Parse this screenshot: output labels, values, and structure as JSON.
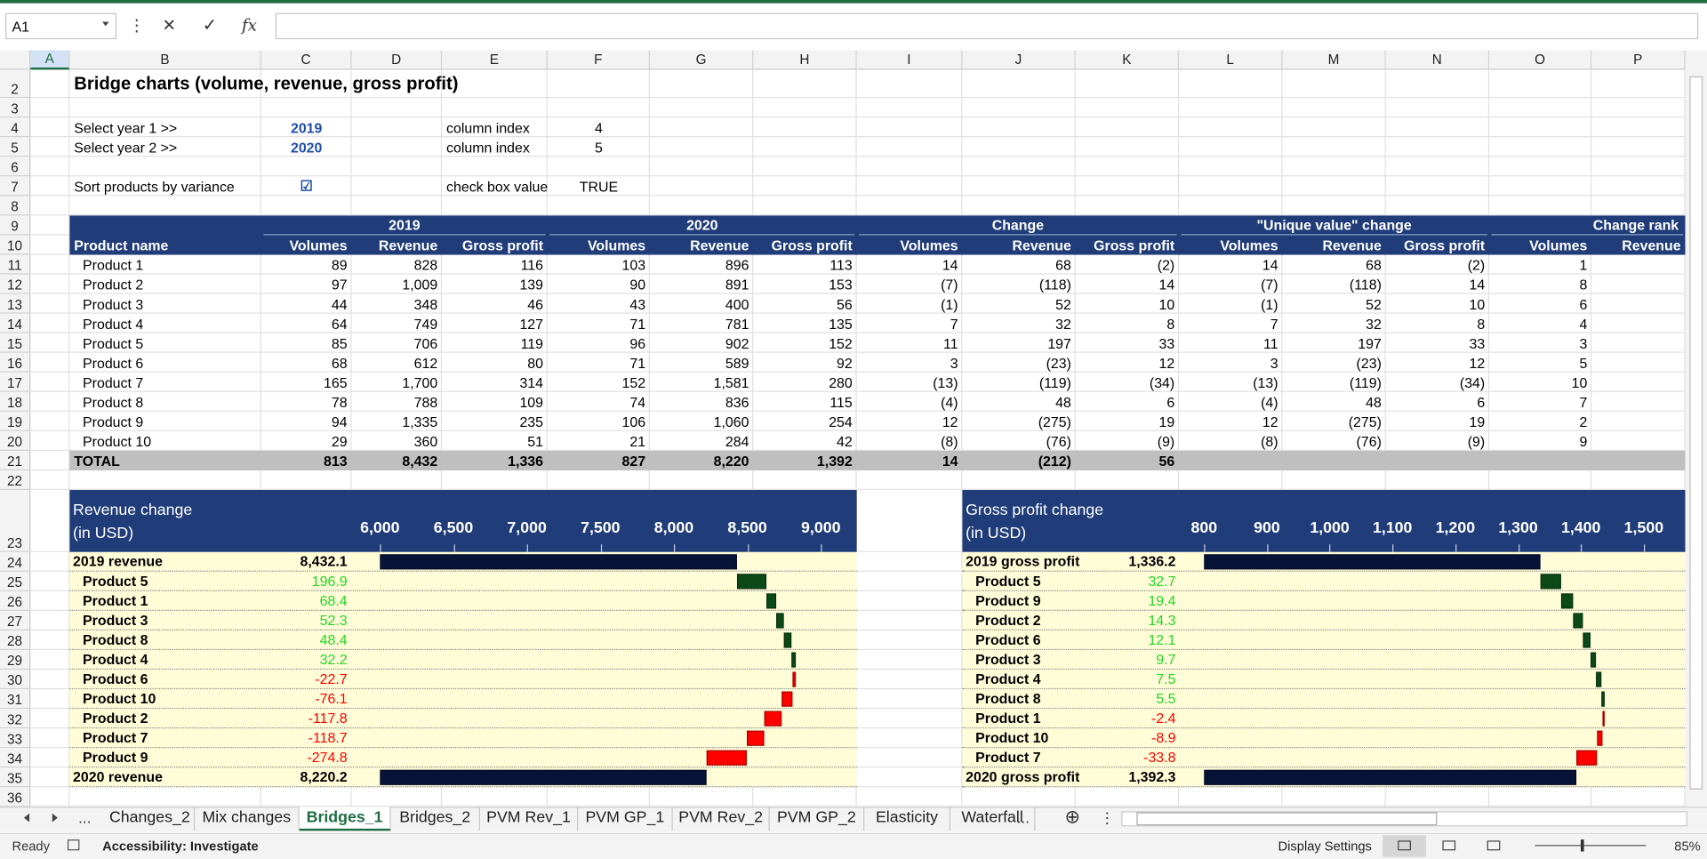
{
  "ui": {
    "name_box": "A1",
    "menu_dots": "⋮",
    "cancel": "✕",
    "enter": "✓",
    "function": "fx",
    "columns": [
      "A",
      "B",
      "C",
      "D",
      "E",
      "F",
      "G",
      "H",
      "I",
      "J",
      "K",
      "L",
      "M",
      "N",
      "O",
      "P"
    ],
    "rows": [
      2,
      3,
      4,
      5,
      6,
      7,
      8,
      9,
      10,
      11,
      12,
      13,
      14,
      15,
      16,
      17,
      18,
      19,
      20,
      21,
      22,
      23,
      24,
      25,
      26,
      27,
      28,
      29,
      30,
      31,
      32,
      33,
      34,
      35,
      36
    ],
    "tabs": [
      "Changes_2",
      "Mix changes",
      "Bridges_1",
      "Bridges_2",
      "PVM Rev_1",
      "PVM GP_1",
      "PVM Rev_2",
      "PVM GP_2",
      "Elasticity",
      "Waterfall"
    ],
    "active_tab": "Bridges_1",
    "more": "...",
    "add_sheet": "⊕",
    "status": {
      "ready": "Ready",
      "accessibility": "Accessibility: Investigate",
      "display": "Display Settings",
      "zoom": "85%"
    }
  },
  "sheet": {
    "title": "Bridge charts (volume, revenue, gross profit)",
    "inputs": [
      {
        "row": 4,
        "label": "Select year 1 >>",
        "year": "2019",
        "index_label": "column index",
        "index": "4"
      },
      {
        "row": 5,
        "label": "Select year 2 >>",
        "year": "2020",
        "index_label": "column index",
        "index": "5"
      },
      {
        "row": 7,
        "label": "Sort products by variance",
        "year": "☑",
        "index_label": "check box value",
        "index": "TRUE"
      }
    ],
    "table": {
      "groups": [
        "2019",
        "2020",
        "Change",
        "\"Unique value\" change",
        "Change rank"
      ],
      "columns": [
        "Product name",
        "Volumes",
        "Revenue",
        "Gross profit",
        "Volumes",
        "Revenue",
        "Gross profit",
        "Volumes",
        "Revenue",
        "Gross profit",
        "Volumes",
        "Revenue",
        "Gross profit",
        "Volumes",
        "Revenue"
      ],
      "rows": [
        [
          "Product 1",
          "89",
          "828",
          "116",
          "103",
          "896",
          "113",
          "14",
          "68",
          "(2)",
          "14",
          "68",
          "(2)",
          "1"
        ],
        [
          "Product 2",
          "97",
          "1,009",
          "139",
          "90",
          "891",
          "153",
          "(7)",
          "(118)",
          "14",
          "(7)",
          "(118)",
          "14",
          "8"
        ],
        [
          "Product 3",
          "44",
          "348",
          "46",
          "43",
          "400",
          "56",
          "(1)",
          "52",
          "10",
          "(1)",
          "52",
          "10",
          "6"
        ],
        [
          "Product 4",
          "64",
          "749",
          "127",
          "71",
          "781",
          "135",
          "7",
          "32",
          "8",
          "7",
          "32",
          "8",
          "4"
        ],
        [
          "Product 5",
          "85",
          "706",
          "119",
          "96",
          "902",
          "152",
          "11",
          "197",
          "33",
          "11",
          "197",
          "33",
          "3"
        ],
        [
          "Product 6",
          "68",
          "612",
          "80",
          "71",
          "589",
          "92",
          "3",
          "(23)",
          "12",
          "3",
          "(23)",
          "12",
          "5"
        ],
        [
          "Product 7",
          "165",
          "1,700",
          "314",
          "152",
          "1,581",
          "280",
          "(13)",
          "(119)",
          "(34)",
          "(13)",
          "(119)",
          "(34)",
          "10"
        ],
        [
          "Product 8",
          "78",
          "788",
          "109",
          "74",
          "836",
          "115",
          "(4)",
          "48",
          "6",
          "(4)",
          "48",
          "6",
          "7"
        ],
        [
          "Product 9",
          "94",
          "1,335",
          "235",
          "106",
          "1,060",
          "254",
          "12",
          "(275)",
          "19",
          "12",
          "(275)",
          "19",
          "2"
        ],
        [
          "Product 10",
          "29",
          "360",
          "51",
          "21",
          "284",
          "42",
          "(8)",
          "(76)",
          "(9)",
          "(8)",
          "(76)",
          "(9)",
          "9"
        ]
      ],
      "total": [
        "TOTAL",
        "813",
        "8,432",
        "1,336",
        "827",
        "8,220",
        "1,392",
        "14",
        "(212)",
        "56"
      ]
    }
  },
  "chart_data": [
    {
      "type": "waterfall",
      "title": "Revenue change",
      "subtitle": "(in USD)",
      "categories": [
        "2019 revenue",
        "Product 5",
        "Product 1",
        "Product 3",
        "Product 8",
        "Product 4",
        "Product 6",
        "Product 10",
        "Product 2",
        "Product 7",
        "Product 9",
        "2020 revenue"
      ],
      "measure": [
        "total",
        "relative",
        "relative",
        "relative",
        "relative",
        "relative",
        "relative",
        "relative",
        "relative",
        "relative",
        "relative",
        "total"
      ],
      "values": [
        8432.1,
        196.9,
        68.4,
        52.3,
        48.4,
        32.2,
        -22.7,
        -76.1,
        -117.8,
        -118.7,
        -274.8,
        8220.2
      ],
      "value_labels": [
        "8,432.1",
        "196.9",
        "68.4",
        "52.3",
        "48.4",
        "32.2",
        "-22.7",
        "-76.1",
        "-117.8",
        "-118.7",
        "-274.8",
        "8,220.2"
      ],
      "xlim": [
        6000,
        9237
      ],
      "xticks": [
        {
          "value": 6000,
          "label": "6,000"
        },
        {
          "value": 6500,
          "label": "6,500"
        },
        {
          "value": 7000,
          "label": "7,000"
        },
        {
          "value": 7500,
          "label": "7,500"
        },
        {
          "value": 8000,
          "label": "8,000"
        },
        {
          "value": 8500,
          "label": "8,500"
        },
        {
          "value": 9000,
          "label": "9,000"
        }
      ],
      "total_color": "#071337",
      "increase_color": "#0b4a17",
      "decrease_color": "#ff0000"
    },
    {
      "type": "waterfall",
      "title": "Gross profit change",
      "subtitle": "(in USD)",
      "categories": [
        "2019 gross profit",
        "Product 5",
        "Product 9",
        "Product 2",
        "Product 6",
        "Product 3",
        "Product 4",
        "Product 8",
        "Product 1",
        "Product 10",
        "Product 7",
        "2020 gross profit"
      ],
      "measure": [
        "total",
        "relative",
        "relative",
        "relative",
        "relative",
        "relative",
        "relative",
        "relative",
        "relative",
        "relative",
        "relative",
        "total"
      ],
      "values": [
        1336.2,
        32.7,
        19.4,
        14.3,
        12.1,
        9.7,
        7.5,
        5.5,
        -2.4,
        -8.9,
        -33.8,
        1392.3
      ],
      "value_labels": [
        "1,336.2",
        "32.7",
        "19.4",
        "14.3",
        "12.1",
        "9.7",
        "7.5",
        "5.5",
        "-2.4",
        "-8.9",
        "-33.8",
        "1,392.3"
      ],
      "xlim": [
        800,
        1566
      ],
      "xticks": [
        800,
        900,
        {
          "value": 1000,
          "label": "1,000"
        },
        {
          "value": 1100,
          "label": "1,100"
        },
        {
          "value": 1200,
          "label": "1,200"
        },
        {
          "value": 1300,
          "label": "1,300"
        },
        {
          "value": 1400,
          "label": "1,400"
        },
        {
          "value": 1500,
          "label": "1,500"
        }
      ],
      "total_color": "#071337",
      "increase_color": "#0b4a17",
      "decrease_color": "#ff0000"
    }
  ]
}
